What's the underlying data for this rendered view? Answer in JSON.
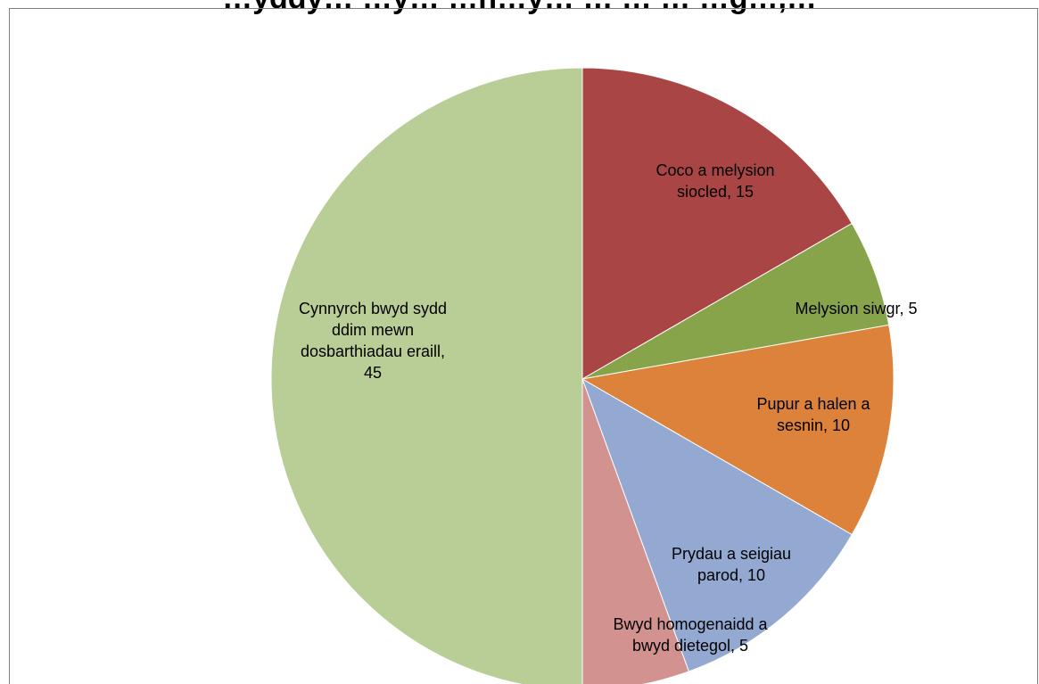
{
  "chart_data": {
    "type": "pie",
    "title": "…yddy… …y… …h…y… … … … …g…,…",
    "slices": [
      {
        "label_lines": [
          "Coco a melysion",
          "siocled, 15"
        ],
        "name": "Coco a melysion siocled",
        "value": 15,
        "color": "#A94544"
      },
      {
        "label_lines": [
          "Melysion siwgr, 5"
        ],
        "name": "Melysion siwgr",
        "value": 5,
        "color": "#88A44B"
      },
      {
        "label_lines": [
          "Pupur a halen a",
          "sesnin, 10"
        ],
        "name": "Pupur a halen a sesnin",
        "value": 10,
        "color": "#DC823A"
      },
      {
        "label_lines": [
          "Prydau a seigiau",
          "parod, 10"
        ],
        "name": "Prydau a seigiau parod",
        "value": 10,
        "color": "#93A9D2"
      },
      {
        "label_lines": [
          "Bwyd homogenaidd a",
          "bwyd dietegol, 5"
        ],
        "name": "Bwyd homogenaidd a bwyd dietegol",
        "value": 5,
        "color": "#D29290"
      },
      {
        "label_lines": [
          "Cynnyrch bwyd sydd",
          "ddim mewn",
          "dosbarthiadau eraill,",
          "45"
        ],
        "name": "Cynnyrch bwyd sydd ddim mewn dosbarthiadau eraill",
        "value": 45,
        "color": "#B9CE96"
      }
    ],
    "start_angle_deg": 0,
    "direction": "clockwise",
    "legend": "none",
    "data_labels": "category name and value"
  }
}
